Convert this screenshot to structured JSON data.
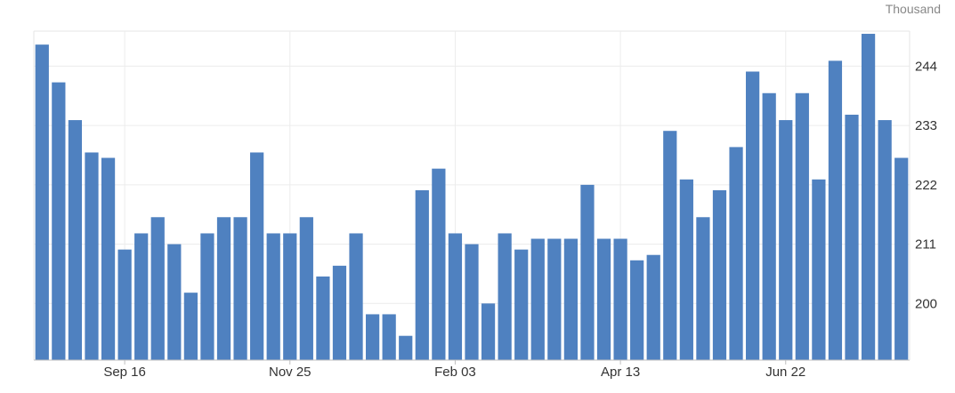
{
  "chart_data": {
    "type": "bar",
    "unit_label": "Thousand",
    "color": "#4f81c0",
    "grid": true,
    "ylim": [
      189.5,
      250.5
    ],
    "yticks": [
      200,
      211,
      222,
      233,
      244
    ],
    "xtick_labels": [
      {
        "label": "Sep 16",
        "index": 5
      },
      {
        "label": "Nov 25",
        "index": 15
      },
      {
        "label": "Feb 03",
        "index": 25
      },
      {
        "label": "Apr 13",
        "index": 35
      },
      {
        "label": "Jun 22",
        "index": 45
      }
    ],
    "values": [
      248,
      241,
      234,
      228,
      227,
      210,
      213,
      216,
      211,
      202,
      213,
      216,
      216,
      228,
      213,
      213,
      216,
      205,
      207,
      213,
      198,
      198,
      194,
      221,
      225,
      213,
      211,
      200,
      213,
      210,
      212,
      212,
      212,
      222,
      212,
      212,
      208,
      209,
      232,
      223,
      216,
      221,
      229,
      243,
      239,
      234,
      239,
      223,
      245,
      235,
      250,
      234,
      227
    ]
  }
}
